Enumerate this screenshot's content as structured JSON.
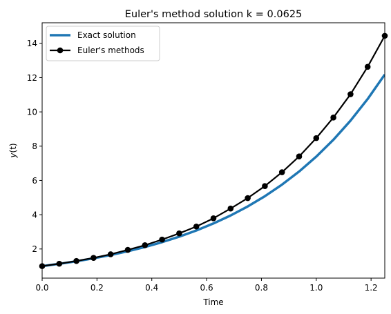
{
  "chart_data": {
    "type": "line",
    "title": "Euler's method solution k = 0.0625",
    "xlabel": "Time",
    "ylabel": "y(t)",
    "xlim": [
      0.0,
      1.25
    ],
    "ylim": [
      0.3,
      15.2
    ],
    "xticks": [
      0.0,
      0.2,
      0.4,
      0.6,
      0.8,
      1.0,
      1.2
    ],
    "xtick_labels": [
      "0.0",
      "0.2",
      "0.4",
      "0.6",
      "0.8",
      "1.0",
      "1.2"
    ],
    "yticks": [
      2,
      4,
      6,
      8,
      10,
      12,
      14
    ],
    "ytick_labels": [
      "2",
      "4",
      "6",
      "8",
      "10",
      "12",
      "14"
    ],
    "grid": false,
    "legend_position": "top-left",
    "series": [
      {
        "name": "Exact solution",
        "style": "line",
        "color": "#1f77b4",
        "x": [
          0.0,
          0.0625,
          0.125,
          0.1875,
          0.25,
          0.3125,
          0.375,
          0.4375,
          0.5,
          0.5625,
          0.625,
          0.6875,
          0.75,
          0.8125,
          0.875,
          0.9375,
          1.0,
          1.0625,
          1.125,
          1.1875,
          1.25
        ],
        "y": [
          1.0,
          1.133,
          1.284,
          1.455,
          1.649,
          1.868,
          2.117,
          2.399,
          2.718,
          3.08,
          3.49,
          3.955,
          4.482,
          5.078,
          5.755,
          6.521,
          7.389,
          8.373,
          9.488,
          10.752,
          12.182
        ]
      },
      {
        "name": "Euler's methods",
        "style": "line-marker",
        "color": "#000000",
        "x": [
          0.0,
          0.0625,
          0.125,
          0.1875,
          0.25,
          0.3125,
          0.375,
          0.4375,
          0.5,
          0.5625,
          0.625,
          0.6875,
          0.75,
          0.8125,
          0.875,
          0.9375,
          1.0,
          1.0625,
          1.125,
          1.1875,
          1.25
        ],
        "y": [
          1.0,
          1.14,
          1.3,
          1.48,
          1.69,
          1.95,
          2.22,
          2.55,
          2.91,
          3.31,
          3.79,
          4.36,
          4.97,
          5.67,
          6.48,
          7.4,
          8.47,
          9.67,
          11.03,
          12.63,
          14.44
        ]
      }
    ]
  }
}
